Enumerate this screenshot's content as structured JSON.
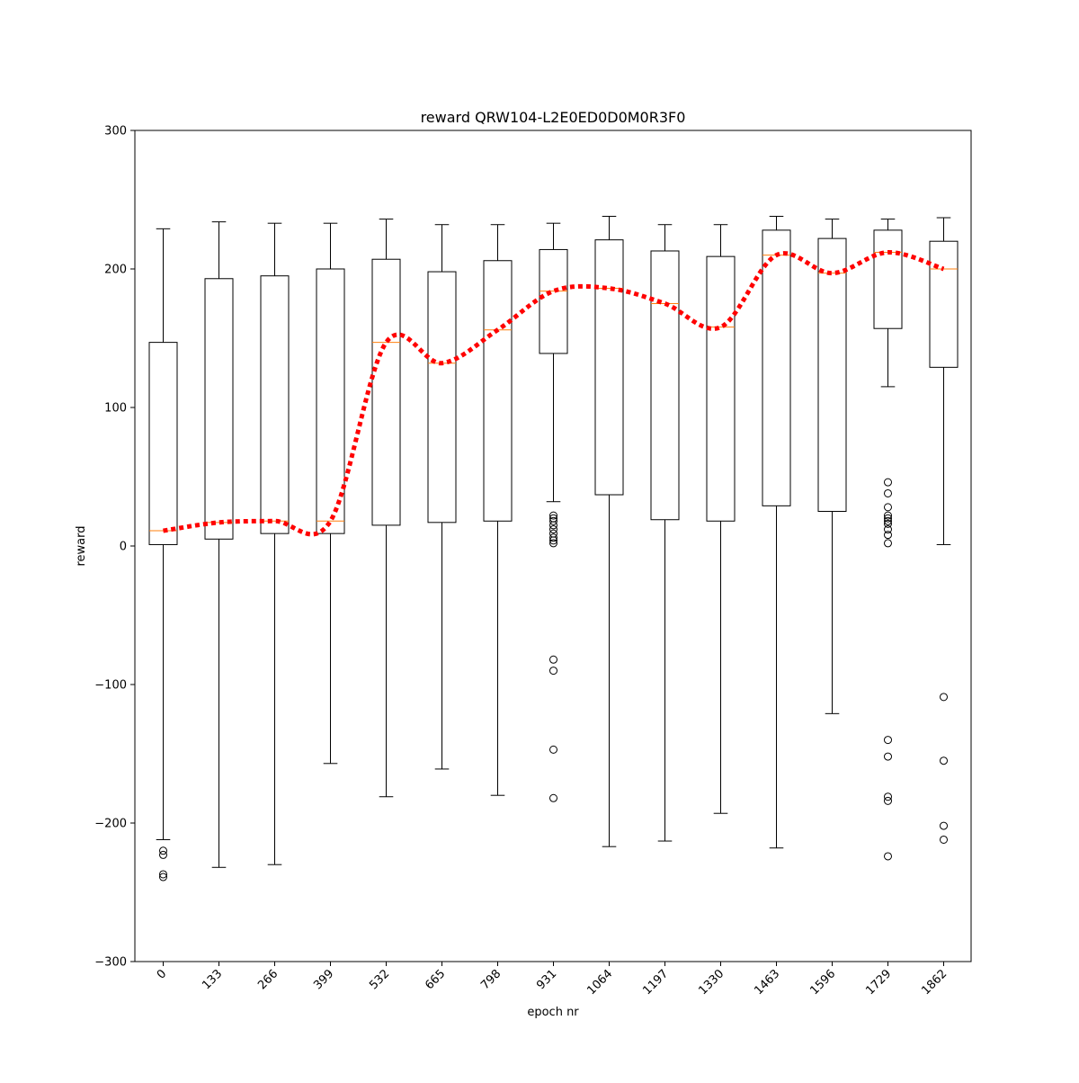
{
  "chart_data": {
    "type": "box",
    "title": "reward QRW104-L2E0ED0D0M0R3F0",
    "xlabel": "epoch nr",
    "ylabel": "reward",
    "ylim": [
      -300,
      300
    ],
    "yticks": [
      -300,
      -200,
      -100,
      0,
      100,
      200,
      300
    ],
    "categories": [
      "0",
      "133",
      "266",
      "399",
      "532",
      "665",
      "798",
      "931",
      "1064",
      "1197",
      "1330",
      "1463",
      "1596",
      "1729",
      "1862"
    ],
    "boxes": [
      {
        "whisker_low": -212,
        "q1": 1,
        "median": 11,
        "q3": 147,
        "whisker_high": 229,
        "outliers": [
          -220,
          -223,
          -237,
          -239
        ]
      },
      {
        "whisker_low": -232,
        "q1": 5,
        "median": 17,
        "q3": 193,
        "whisker_high": 234,
        "outliers": []
      },
      {
        "whisker_low": -230,
        "q1": 9,
        "median": 18,
        "q3": 195,
        "whisker_high": 233,
        "outliers": []
      },
      {
        "whisker_low": -157,
        "q1": 9,
        "median": 18,
        "q3": 200,
        "whisker_high": 233,
        "outliers": []
      },
      {
        "whisker_low": -181,
        "q1": 15,
        "median": 147,
        "q3": 207,
        "whisker_high": 236,
        "outliers": []
      },
      {
        "whisker_low": -161,
        "q1": 17,
        "median": 132,
        "q3": 198,
        "whisker_high": 232,
        "outliers": []
      },
      {
        "whisker_low": -180,
        "q1": 18,
        "median": 156,
        "q3": 206,
        "whisker_high": 232,
        "outliers": []
      },
      {
        "whisker_low": 32,
        "q1": 139,
        "median": 184,
        "q3": 214,
        "whisker_high": 233,
        "outliers": [
          22,
          20,
          18,
          15,
          12,
          9,
          6,
          4,
          2,
          -82,
          -90,
          -147,
          -182
        ]
      },
      {
        "whisker_low": -217,
        "q1": 37,
        "median": 186,
        "q3": 221,
        "whisker_high": 238,
        "outliers": []
      },
      {
        "whisker_low": -213,
        "q1": 19,
        "median": 175,
        "q3": 213,
        "whisker_high": 232,
        "outliers": []
      },
      {
        "whisker_low": -193,
        "q1": 18,
        "median": 158,
        "q3": 209,
        "whisker_high": 232,
        "outliers": []
      },
      {
        "whisker_low": -218,
        "q1": 29,
        "median": 210,
        "q3": 228,
        "whisker_high": 238,
        "outliers": []
      },
      {
        "whisker_low": -121,
        "q1": 25,
        "median": 197,
        "q3": 222,
        "whisker_high": 236,
        "outliers": []
      },
      {
        "whisker_low": 115,
        "q1": 157,
        "median": 212,
        "q3": 228,
        "whisker_high": 236,
        "outliers": [
          46,
          38,
          28,
          22,
          20,
          18,
          16,
          12,
          8,
          2,
          -140,
          -152,
          -181,
          -184,
          -224
        ]
      },
      {
        "whisker_low": 1,
        "q1": 129,
        "median": 200,
        "q3": 220,
        "whisker_high": 237,
        "outliers": [
          -109,
          -155,
          -202,
          -212
        ]
      }
    ],
    "trend_line": {
      "style": "dotted",
      "color": "#ff0000",
      "values": [
        11,
        17,
        18,
        18,
        147,
        132,
        156,
        184,
        186,
        175,
        158,
        210,
        197,
        212,
        200
      ]
    },
    "colors": {
      "box": "#000000",
      "median": "#ff7f0e",
      "trend": "#ff0000"
    },
    "grid": false,
    "legend": "none"
  }
}
